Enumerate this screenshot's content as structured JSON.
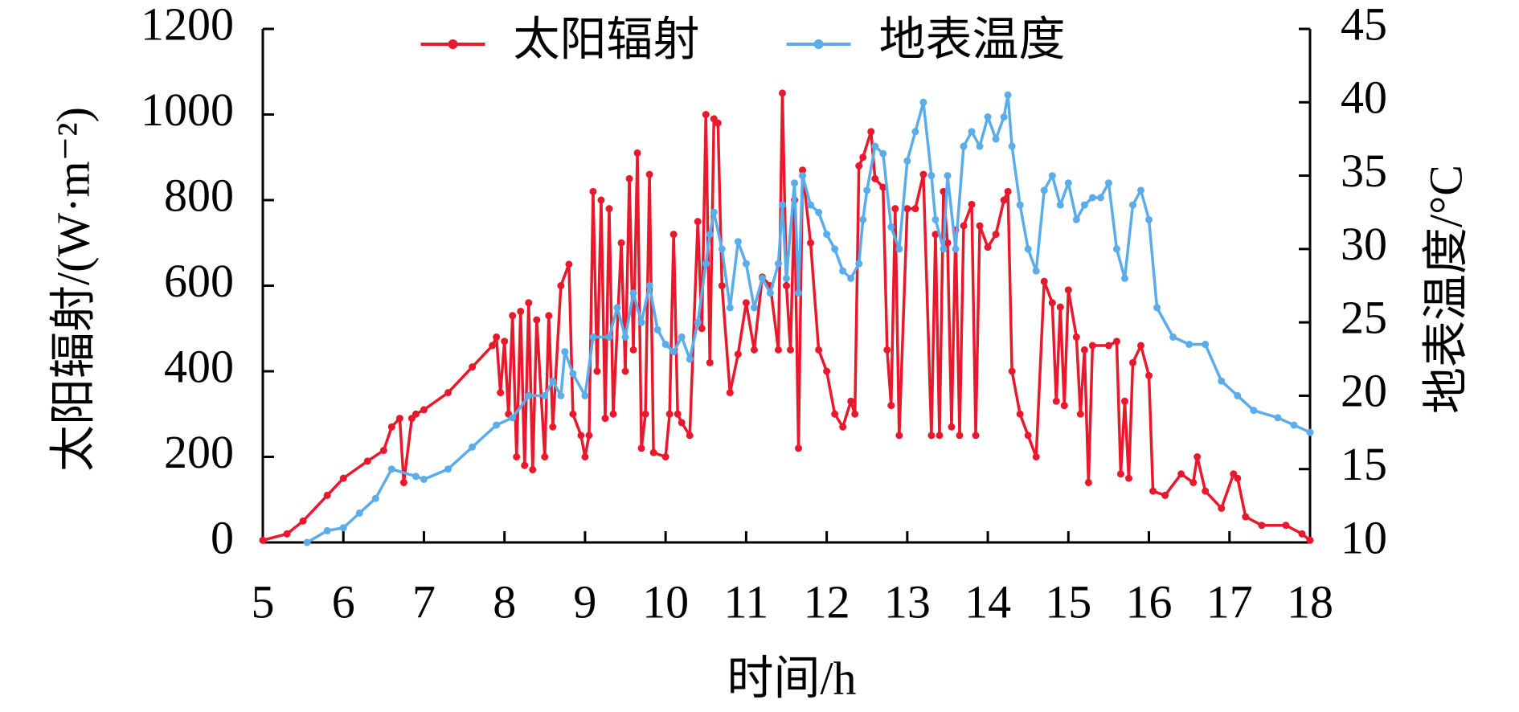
{
  "chart_data": {
    "type": "line",
    "xlabel": "时间/h",
    "ylabel": "太阳辐射/(W·m⁻²)",
    "y2label": "地表温度/°C",
    "xlim": [
      5,
      18
    ],
    "xticks": [
      5,
      6,
      7,
      8,
      9,
      10,
      11,
      12,
      13,
      14,
      15,
      16,
      17,
      18
    ],
    "ylim": [
      0,
      1200
    ],
    "yticks": [
      0,
      200,
      400,
      600,
      800,
      1000,
      1200
    ],
    "y2lim": [
      10,
      45
    ],
    "y2ticks": [
      10,
      15,
      20,
      25,
      30,
      35,
      40,
      45
    ],
    "legend": "upper center",
    "series": [
      {
        "name": "太阳辐射",
        "color": "#e8192c",
        "axis": "y",
        "x": [
          5.0,
          5.3,
          5.5,
          5.8,
          6.0,
          6.3,
          6.5,
          6.6,
          6.7,
          6.75,
          6.85,
          6.9,
          7.0,
          7.3,
          7.6,
          7.85,
          7.9,
          7.95,
          8.0,
          8.05,
          8.1,
          8.15,
          8.2,
          8.25,
          8.3,
          8.35,
          8.4,
          8.5,
          8.55,
          8.6,
          8.7,
          8.8,
          8.85,
          8.95,
          9.0,
          9.05,
          9.1,
          9.15,
          9.2,
          9.25,
          9.3,
          9.35,
          9.45,
          9.5,
          9.55,
          9.6,
          9.65,
          9.7,
          9.75,
          9.8,
          9.85,
          10.0,
          10.05,
          10.1,
          10.15,
          10.2,
          10.3,
          10.4,
          10.45,
          10.5,
          10.55,
          10.6,
          10.65,
          10.7,
          10.8,
          10.9,
          11.0,
          11.1,
          11.2,
          11.3,
          11.4,
          11.45,
          11.5,
          11.55,
          11.6,
          11.65,
          11.7,
          11.8,
          11.9,
          12.0,
          12.1,
          12.2,
          12.3,
          12.35,
          12.4,
          12.45,
          12.55,
          12.6,
          12.7,
          12.75,
          12.8,
          12.85,
          12.9,
          13.0,
          13.1,
          13.2,
          13.3,
          13.35,
          13.4,
          13.45,
          13.5,
          13.55,
          13.6,
          13.65,
          13.7,
          13.8,
          13.85,
          13.9,
          14.0,
          14.1,
          14.2,
          14.25,
          14.3,
          14.4,
          14.5,
          14.6,
          14.7,
          14.8,
          14.85,
          14.9,
          14.95,
          15.0,
          15.1,
          15.15,
          15.2,
          15.25,
          15.3,
          15.5,
          15.6,
          15.65,
          15.7,
          15.75,
          15.8,
          15.9,
          16.0,
          16.05,
          16.2,
          16.4,
          16.55,
          16.6,
          16.7,
          16.9,
          17.05,
          17.1,
          17.2,
          17.4,
          17.7,
          17.9,
          18.0
        ],
        "values": [
          5,
          20,
          50,
          110,
          150,
          190,
          215,
          270,
          290,
          140,
          290,
          300,
          310,
          350,
          410,
          460,
          480,
          350,
          470,
          300,
          530,
          200,
          540,
          180,
          560,
          170,
          520,
          200,
          530,
          270,
          600,
          650,
          300,
          250,
          200,
          250,
          820,
          400,
          800,
          290,
          780,
          300,
          700,
          400,
          850,
          450,
          910,
          220,
          300,
          860,
          210,
          200,
          300,
          720,
          300,
          280,
          250,
          750,
          500,
          1000,
          420,
          990,
          980,
          600,
          350,
          440,
          560,
          450,
          620,
          600,
          450,
          1050,
          600,
          450,
          800,
          220,
          870,
          700,
          450,
          400,
          300,
          270,
          330,
          300,
          880,
          900,
          960,
          850,
          830,
          450,
          320,
          780,
          250,
          780,
          780,
          860,
          250,
          720,
          250,
          820,
          700,
          270,
          730,
          250,
          740,
          790,
          250,
          740,
          690,
          720,
          800,
          820,
          400,
          300,
          250,
          200,
          610,
          560,
          330,
          550,
          320,
          590,
          480,
          300,
          450,
          140,
          460,
          460,
          470,
          160,
          330,
          150,
          420,
          460,
          390,
          120,
          110,
          160,
          140,
          200,
          120,
          80,
          160,
          150,
          60,
          40,
          40,
          20,
          5
        ]
      },
      {
        "name": "地表温度",
        "color": "#5aacea",
        "axis": "y2",
        "x": [
          5.55,
          5.8,
          6.0,
          6.2,
          6.4,
          6.6,
          6.9,
          7.0,
          7.3,
          7.6,
          7.9,
          8.1,
          8.3,
          8.5,
          8.6,
          8.7,
          8.75,
          8.85,
          9.0,
          9.1,
          9.3,
          9.4,
          9.5,
          9.6,
          9.7,
          9.8,
          9.9,
          10.0,
          10.1,
          10.2,
          10.3,
          10.4,
          10.5,
          10.55,
          10.6,
          10.7,
          10.8,
          10.9,
          11.0,
          11.1,
          11.2,
          11.3,
          11.4,
          11.45,
          11.5,
          11.6,
          11.65,
          11.7,
          11.8,
          11.9,
          12.0,
          12.1,
          12.2,
          12.3,
          12.4,
          12.45,
          12.5,
          12.6,
          12.7,
          12.8,
          12.9,
          13.0,
          13.1,
          13.2,
          13.3,
          13.35,
          13.45,
          13.5,
          13.6,
          13.7,
          13.8,
          13.9,
          14.0,
          14.1,
          14.2,
          14.25,
          14.3,
          14.4,
          14.5,
          14.6,
          14.7,
          14.8,
          14.9,
          15.0,
          15.1,
          15.2,
          15.3,
          15.4,
          15.5,
          15.6,
          15.7,
          15.8,
          15.9,
          16.0,
          16.1,
          16.3,
          16.5,
          16.7,
          16.9,
          17.1,
          17.3,
          17.6,
          17.8,
          18.0
        ],
        "values": [
          10,
          10.8,
          11,
          12,
          13,
          15,
          14.5,
          14.3,
          15,
          16.5,
          18,
          18.5,
          20,
          20,
          21,
          20,
          23,
          21.5,
          20,
          24,
          24,
          26,
          24,
          27,
          25,
          27.5,
          24.5,
          23.5,
          23,
          24,
          22.5,
          25,
          29,
          31,
          32.5,
          30,
          26,
          30.5,
          29,
          26,
          28,
          27,
          29,
          33,
          28,
          34.5,
          27,
          35,
          33,
          32.5,
          31,
          30,
          28.5,
          28,
          29,
          32,
          34,
          37,
          36.5,
          31.5,
          30,
          36,
          38,
          40,
          35,
          32,
          30,
          35,
          30,
          37,
          38,
          37,
          39,
          37.5,
          39,
          40.5,
          37,
          33,
          30,
          28.5,
          34,
          35,
          33,
          34.5,
          32,
          33,
          33.5,
          33.5,
          34.5,
          30,
          28,
          33,
          34,
          32,
          26,
          24,
          23.5,
          23.5,
          21,
          20,
          19,
          18.5,
          18,
          17.5
        ]
      }
    ]
  }
}
